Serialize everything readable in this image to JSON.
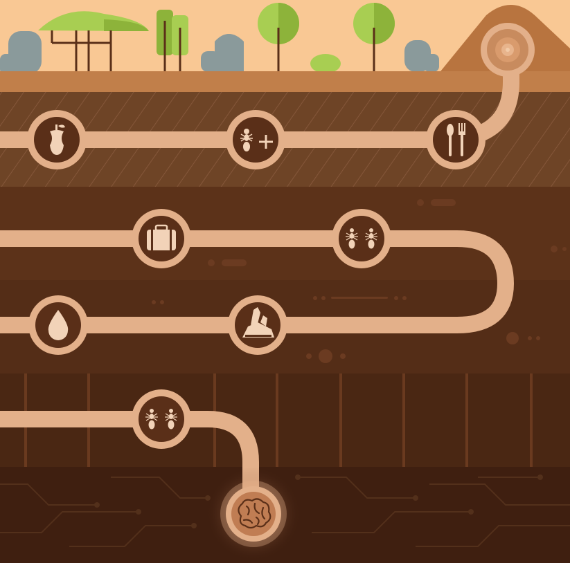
{
  "colors": {
    "sky": "#F9C894",
    "ground_top": "#C17F4A",
    "layer1": "#6E4426",
    "layer2": "#5C3219",
    "layer3": "#542D17",
    "layer4": "#4A2713",
    "layer5": "#3F1F10",
    "tunnel": "#E3B08A",
    "node_fill": "#5A2F18",
    "node_ring": "#E3B08A",
    "hill": "#B8743F",
    "tree_leaf": "#A8CE52",
    "tree_leaf_dark": "#8DB33A",
    "rock": "#8A9A9B",
    "brain": "#C07D53"
  },
  "nodes": [
    {
      "id": "entrance",
      "icon": "nest-entrance-icon"
    },
    {
      "id": "food",
      "icon": "apple-core-icon"
    },
    {
      "id": "ant-plus",
      "icon": "ant-plus-icon"
    },
    {
      "id": "dining",
      "icon": "fork-spoon-icon"
    },
    {
      "id": "storage",
      "icon": "suitcase-icon"
    },
    {
      "id": "ant-pair-1",
      "icon": "two-ants-icon"
    },
    {
      "id": "water",
      "icon": "water-drop-icon"
    },
    {
      "id": "minerals",
      "icon": "crystal-rock-icon"
    },
    {
      "id": "ant-pair-2",
      "icon": "two-ants-icon"
    },
    {
      "id": "brain",
      "icon": "brain-icon"
    }
  ]
}
